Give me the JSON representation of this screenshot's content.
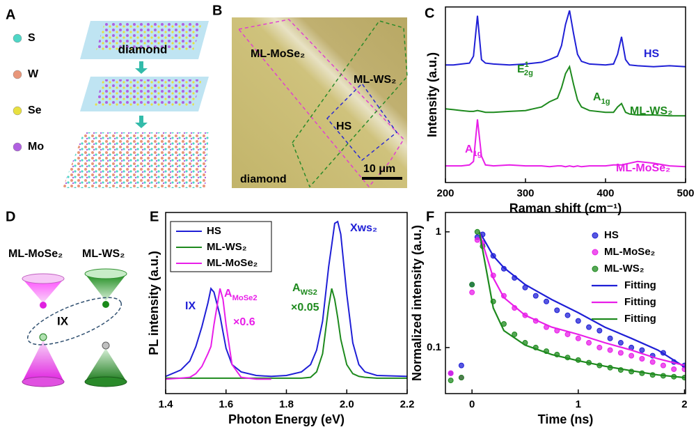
{
  "panels": {
    "A": {
      "label": "A",
      "legend": [
        {
          "name": "S",
          "color": "#4fd6c6"
        },
        {
          "name": "W",
          "color": "#e8967a"
        },
        {
          "name": "Se",
          "color": "#e8e040"
        },
        {
          "name": "Mo",
          "color": "#b060e0"
        }
      ],
      "substrate": "diamond"
    },
    "B": {
      "label": "B",
      "regions": [
        "ML-MoSe₂",
        "ML-WS₂",
        "HS",
        "diamond"
      ],
      "scale_bar": "10 μm"
    },
    "D": {
      "label": "D",
      "layers": [
        "ML-MoSe₂",
        "ML-WS₂"
      ],
      "exciton": "IX"
    }
  },
  "chart_data": [
    {
      "type": "line",
      "label": "C",
      "xlabel": "Raman shift (cm⁻¹)",
      "ylabel": "Intensity (a.u.)",
      "xlim": [
        200,
        500
      ],
      "xticks": [
        200,
        300,
        400,
        500
      ],
      "ylim": [
        0,
        10
      ],
      "x": [
        200,
        210,
        220,
        230,
        235,
        240,
        245,
        250,
        260,
        280,
        300,
        320,
        330,
        340,
        345,
        350,
        355,
        360,
        365,
        370,
        380,
        400,
        410,
        415,
        420,
        425,
        430,
        440,
        460,
        480,
        500
      ],
      "series": [
        {
          "name": "HS",
          "color": "#1f1fd6",
          "values": [
            6.7,
            6.7,
            6.75,
            6.8,
            7.2,
            9.5,
            7.0,
            6.8,
            6.75,
            6.7,
            6.75,
            6.85,
            7.0,
            7.2,
            7.8,
            9.0,
            9.8,
            8.5,
            7.3,
            6.9,
            6.75,
            6.7,
            6.75,
            7.3,
            8.3,
            7.0,
            6.7,
            6.65,
            6.6,
            6.65,
            6.6
          ]
        },
        {
          "name": "ML-WS₂",
          "color": "#1e8a1e",
          "values": [
            4.2,
            4.15,
            4.1,
            4.05,
            4.05,
            4.1,
            4.05,
            4.0,
            4.0,
            4.05,
            4.1,
            4.3,
            4.6,
            4.8,
            5.4,
            6.2,
            6.6,
            5.6,
            4.7,
            4.3,
            4.1,
            4.0,
            4.0,
            4.3,
            4.5,
            4.0,
            3.9,
            3.85,
            3.85,
            3.8,
            3.8
          ]
        },
        {
          "name": "ML-MoSe₂",
          "color": "#e81ee8",
          "values": [
            0.95,
            0.95,
            0.95,
            1.0,
            1.2,
            3.6,
            1.5,
            1.0,
            0.95,
            1.0,
            0.95,
            0.95,
            0.9,
            0.95,
            0.95,
            0.9,
            0.95,
            0.9,
            0.95,
            0.9,
            0.95,
            0.95,
            1.0,
            1.0,
            1.0,
            1.05,
            1.1,
            1.2,
            1.1,
            0.95,
            0.9
          ]
        }
      ],
      "annotations": [
        {
          "text": "HS",
          "color": "#1f1fd6"
        },
        {
          "text": "E",
          "sup": "1",
          "sub": "2g",
          "color": "#1e8a1e"
        },
        {
          "text": "A",
          "sub": "1g",
          "color": "#1e8a1e"
        },
        {
          "text": "ML-WS₂",
          "color": "#1e8a1e"
        },
        {
          "text": "A",
          "sub": "1g",
          "color": "#e81ee8"
        },
        {
          "text": "ML-MoSe₂",
          "color": "#e81ee8"
        }
      ]
    },
    {
      "type": "line",
      "label": "E",
      "xlabel": "Photon Energy (eV)",
      "ylabel": "PL intensity (a.u.)",
      "xlim": [
        1.4,
        2.2
      ],
      "xticks": [
        1.4,
        1.6,
        1.8,
        {
          "value": 2,
          "label": "2.0"
        },
        2.2
      ],
      "ylim": [
        0,
        10
      ],
      "legend": "upper left",
      "x": [
        1.4,
        1.45,
        1.48,
        1.5,
        1.52,
        1.54,
        1.55,
        1.56,
        1.58,
        1.59,
        1.6,
        1.62,
        1.65,
        1.7,
        1.75,
        1.8,
        1.85,
        1.88,
        1.9,
        1.92,
        1.94,
        1.95,
        1.96,
        1.97,
        1.98,
        2.0,
        2.02,
        2.04,
        2.06,
        2.1,
        2.2
      ],
      "series": [
        {
          "name": "HS",
          "color": "#1f1fd6",
          "values": [
            0.95,
            1.3,
            1.8,
            2.6,
            3.7,
            5.0,
            5.8,
            5.6,
            4.3,
            3.4,
            2.5,
            1.6,
            1.2,
            1.0,
            0.95,
            1.0,
            1.2,
            1.6,
            2.4,
            4.0,
            7.0,
            8.2,
            9.4,
            9.5,
            8.8,
            5.5,
            2.8,
            1.6,
            1.2,
            1.0,
            0.95
          ]
        },
        {
          "name": "ML-WS₂",
          "color": "#1e8a1e",
          "values": [
            0.85,
            0.85,
            0.85,
            0.85,
            0.85,
            0.85,
            0.85,
            0.85,
            0.85,
            0.85,
            0.85,
            0.85,
            0.85,
            0.85,
            0.85,
            0.85,
            0.85,
            0.9,
            1.2,
            2.2,
            4.8,
            5.8,
            5.2,
            4.2,
            3.0,
            1.6,
            1.1,
            0.95,
            0.9,
            0.85,
            0.85
          ]
        },
        {
          "name": "ML-MoSe₂",
          "color": "#e81ee8",
          "values": [
            0.8,
            0.85,
            0.9,
            1.1,
            1.5,
            2.2,
            2.6,
            3.8,
            5.8,
            5.2,
            3.8,
            1.6,
            0.9,
            0.8,
            0.8,
            null,
            null,
            null,
            null,
            null,
            null,
            null,
            null,
            null,
            null,
            null,
            null,
            null,
            null,
            null,
            null
          ]
        }
      ],
      "annotations": [
        {
          "text": "IX",
          "color": "#1f1fd6"
        },
        {
          "text": "A",
          "sub": "MoSe2",
          "color": "#e81ee8"
        },
        {
          "text": "×0.6",
          "color": "#e81ee8"
        },
        {
          "text": "A",
          "sub": "WS2",
          "color": "#1e8a1e"
        },
        {
          "text": "×0.05",
          "color": "#1e8a1e"
        },
        {
          "text": "Xws₂",
          "color": "#1f1fd6"
        }
      ]
    },
    {
      "type": "scatter",
      "label": "F",
      "xlabel": "Time (ns)",
      "ylabel": "Normalized intensity (a.u.)",
      "xlim": [
        -0.25,
        2.01
      ],
      "xticks": [
        0,
        1,
        2
      ],
      "ylim": [
        0.04,
        1.47
      ],
      "yscale": "log",
      "yticks": [
        0.1,
        1
      ],
      "legend": "upper right",
      "series": [
        {
          "name": "HS",
          "kind": "scatter",
          "color": "#1f1fd6",
          "x": [
            -0.2,
            -0.1,
            0,
            0.05,
            0.1,
            0.2,
            0.3,
            0.4,
            0.5,
            0.6,
            0.7,
            0.8,
            0.9,
            1.0,
            1.1,
            1.2,
            1.3,
            1.4,
            1.5,
            1.6,
            1.7,
            1.8,
            1.9,
            2.0
          ],
          "values": [
            0.06,
            0.07,
            0.35,
            0.9,
            0.95,
            0.62,
            0.48,
            0.4,
            0.33,
            0.28,
            0.25,
            0.21,
            0.19,
            0.17,
            0.15,
            0.14,
            0.12,
            0.11,
            0.1,
            0.095,
            0.085,
            0.09,
            0.075,
            0.07
          ]
        },
        {
          "name": "ML-MoSe₂",
          "kind": "scatter",
          "color": "#e81ee8",
          "x": [
            -0.2,
            -0.1,
            0,
            0.05,
            0.1,
            0.2,
            0.3,
            0.4,
            0.5,
            0.6,
            0.7,
            0.8,
            0.9,
            1.0,
            1.1,
            1.2,
            1.3,
            1.4,
            1.5,
            1.6,
            1.7,
            1.8,
            1.9,
            2.0
          ],
          "values": [
            0.06,
            0.055,
            0.3,
            0.85,
            0.8,
            0.42,
            0.28,
            0.22,
            0.19,
            0.17,
            0.15,
            0.14,
            0.13,
            0.12,
            0.11,
            0.1,
            0.095,
            0.09,
            0.085,
            0.08,
            0.075,
            0.07,
            0.065,
            0.065
          ]
        },
        {
          "name": "ML-WS₂",
          "kind": "scatter",
          "color": "#1e8a1e",
          "x": [
            -0.2,
            -0.1,
            0,
            0.05,
            0.1,
            0.2,
            0.3,
            0.4,
            0.5,
            0.6,
            0.7,
            0.8,
            0.9,
            1.0,
            1.1,
            1.2,
            1.3,
            1.4,
            1.5,
            1.6,
            1.7,
            1.8,
            1.9,
            2.0
          ],
          "values": [
            0.052,
            0.055,
            0.35,
            1.0,
            0.75,
            0.25,
            0.16,
            0.13,
            0.11,
            0.1,
            0.093,
            0.087,
            0.082,
            0.078,
            0.074,
            0.07,
            0.067,
            0.064,
            0.062,
            0.06,
            0.058,
            0.057,
            0.056,
            0.055
          ]
        },
        {
          "name": "Fitting",
          "kind": "line",
          "color": "#1f1fd6",
          "x": [
            0.07,
            0.1,
            0.2,
            0.3,
            0.5,
            0.75,
            1.0,
            1.25,
            1.5,
            1.75,
            2.0
          ],
          "values": [
            1.0,
            0.9,
            0.62,
            0.49,
            0.35,
            0.26,
            0.2,
            0.15,
            0.12,
            0.095,
            0.068
          ]
        },
        {
          "name": "Fitting",
          "kind": "line",
          "color": "#e81ee8",
          "x": [
            0.07,
            0.1,
            0.2,
            0.3,
            0.5,
            0.75,
            1.0,
            1.25,
            1.5,
            1.75,
            2.0
          ],
          "values": [
            1.0,
            0.8,
            0.4,
            0.27,
            0.19,
            0.15,
            0.13,
            0.11,
            0.095,
            0.08,
            0.07
          ]
        },
        {
          "name": "Fitting",
          "kind": "line",
          "color": "#1e8a1e",
          "x": [
            0.07,
            0.1,
            0.2,
            0.3,
            0.5,
            0.75,
            1.0,
            1.25,
            1.5,
            1.75,
            2.0
          ],
          "values": [
            1.0,
            0.7,
            0.22,
            0.14,
            0.105,
            0.087,
            0.077,
            0.069,
            0.063,
            0.058,
            0.055
          ]
        }
      ]
    }
  ]
}
